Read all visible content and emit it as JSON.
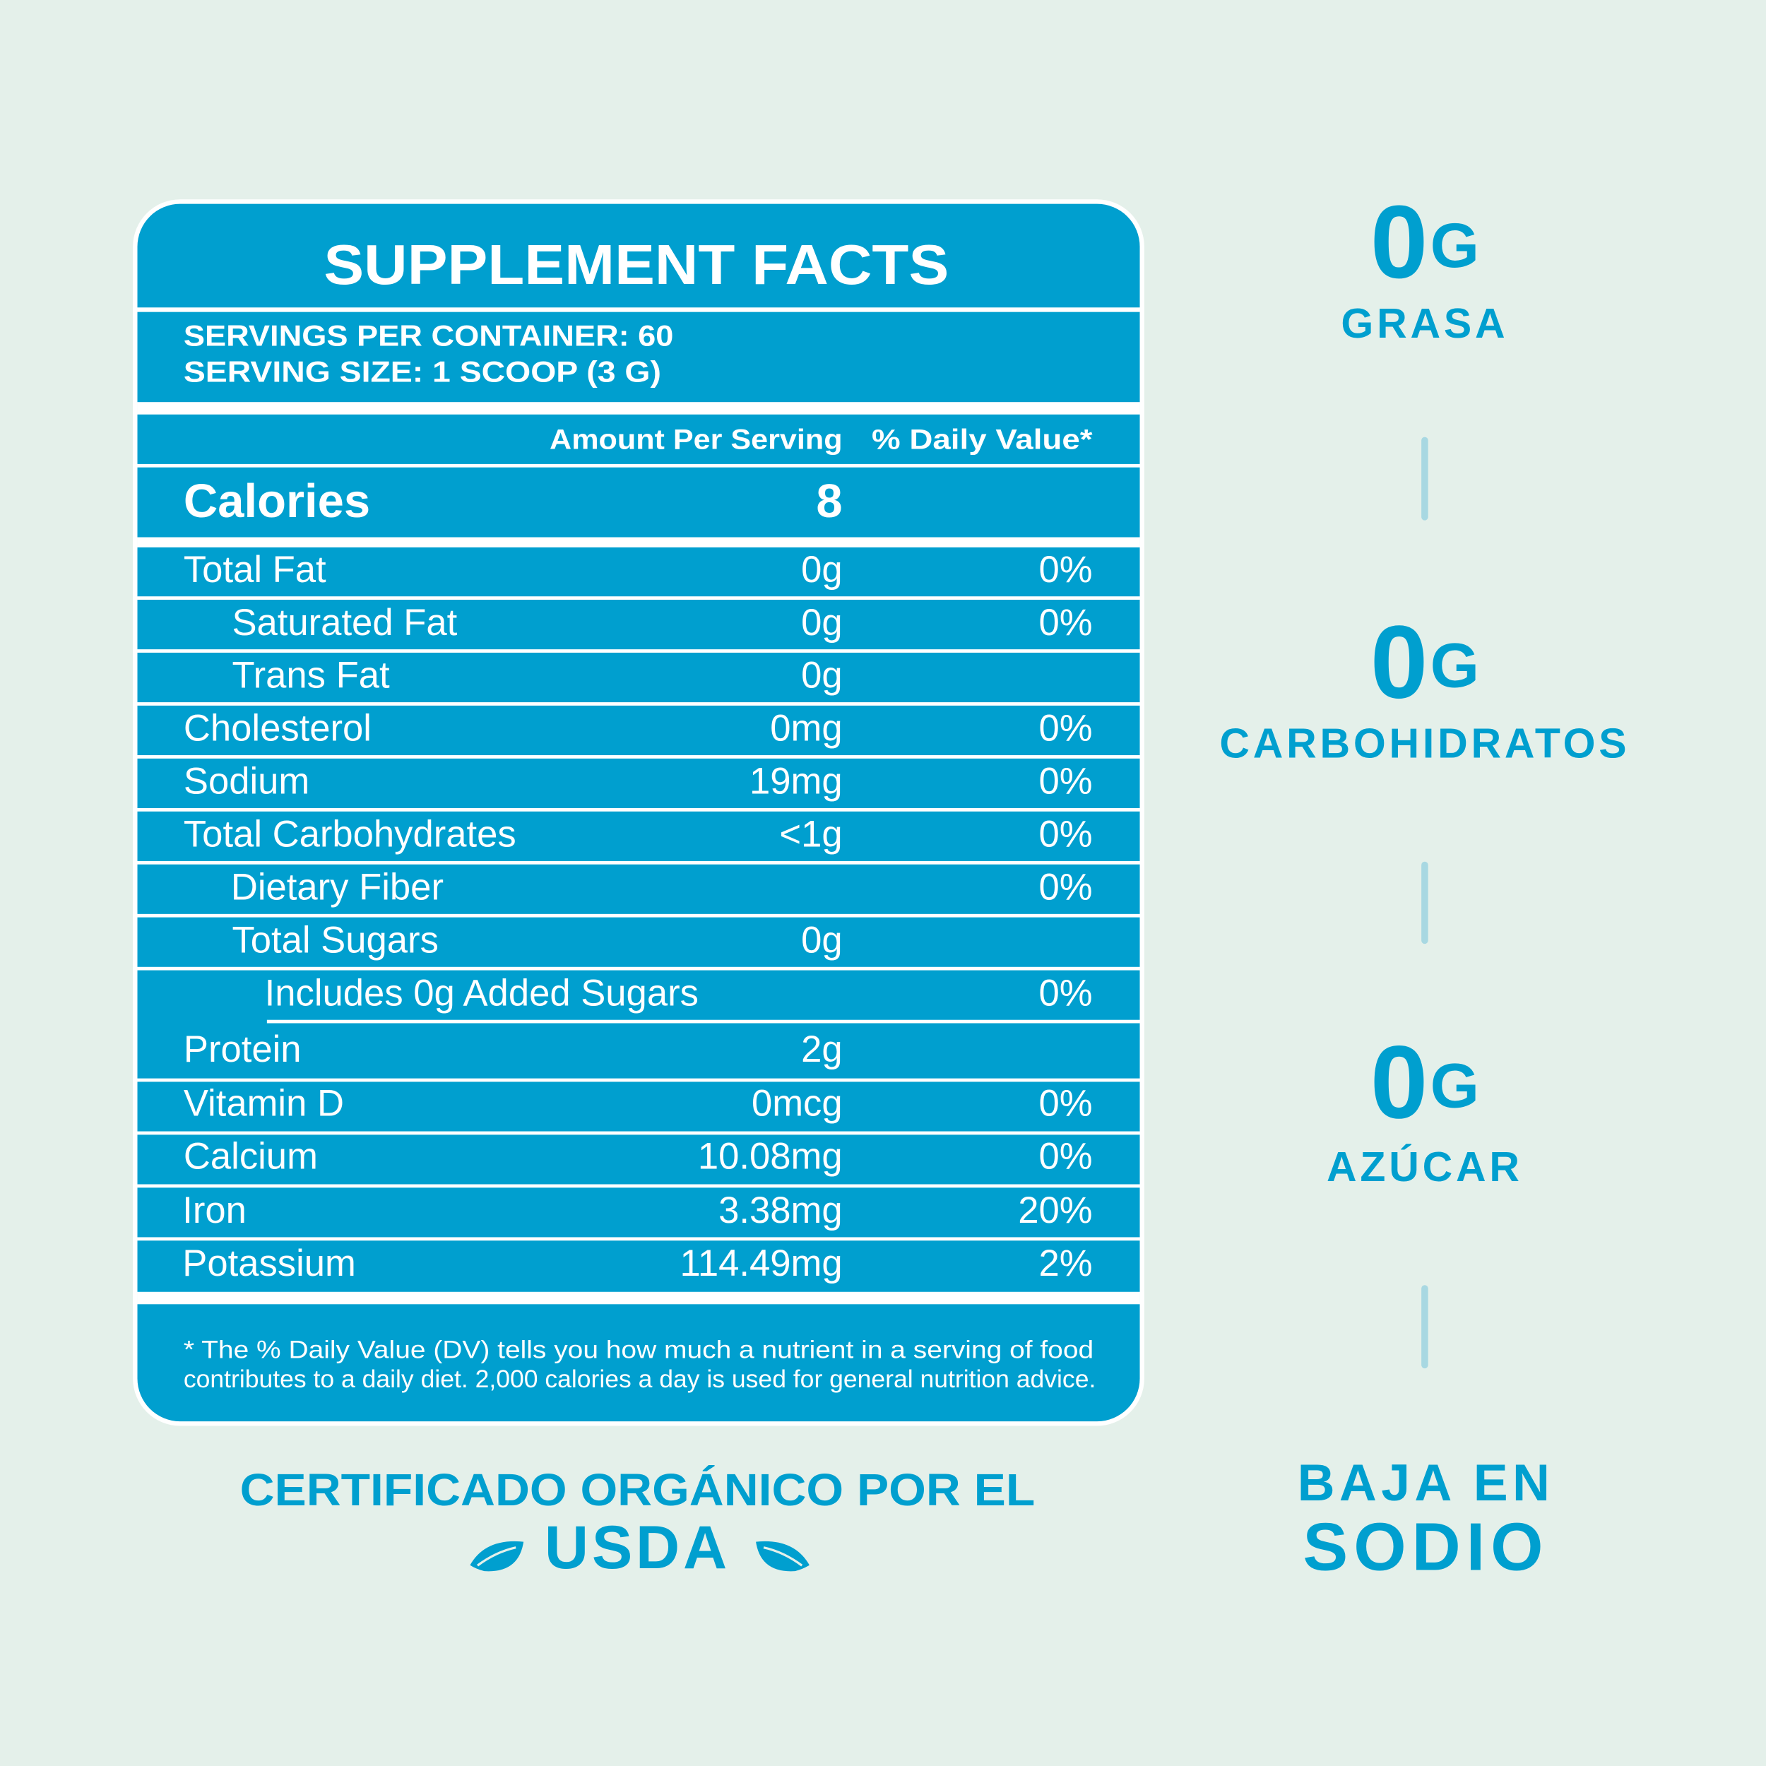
{
  "header": {
    "title": "SUPPLEMENT FACTS",
    "servings": [
      "SERVINGS PER CONTAINER: 60",
      "SERVING SIZE:  1 SCOOP (3 G)"
    ]
  },
  "table": {
    "columns": [
      "Amount Per Serving",
      "% Daily Value*"
    ],
    "calories": {
      "label": "Calories",
      "value": 8
    },
    "rows": [
      {
        "label": "Total Fat",
        "amount": "0g",
        "dv": "0%"
      },
      {
        "label": "Saturated Fat",
        "amount": "0g",
        "dv": "0%"
      },
      {
        "label": "Trans Fat",
        "amount": "0g"
      },
      {
        "label": "Cholesterol",
        "amount": "0mg",
        "dv": "0%"
      },
      {
        "label": "Sodium",
        "amount": "19mg",
        "dv": "0%"
      },
      {
        "label": "Total Carbohydrates",
        "amount": "<1g",
        "dv": "0%"
      },
      {
        "label": "Dietary Fiber",
        "dv": "0%"
      },
      {
        "label": "Total Sugars",
        "amount": "0g"
      },
      {
        "label": "Includes 0g Added Sugars",
        "dv": "0%"
      },
      {
        "label": "Protein",
        "amount": "2g"
      },
      {
        "label": "Vitamin D",
        "amount": "0mcg",
        "dv": "0%"
      },
      {
        "label": "Calcium",
        "amount": "10.08mg",
        "dv": "0%"
      },
      {
        "label": "Iron",
        "amount": "3.38mg",
        "dv": "20%"
      },
      {
        "label": "Potassium",
        "amount": "114.49mg",
        "dv": "2%"
      }
    ],
    "footnote": [
      "* The % Daily Value (DV) tells you how much a nutrient in a serving of food",
      "contributes to a daily diet. 2,000 calories a day is used for general nutrition advice."
    ]
  },
  "highlights": [
    {
      "value": 0,
      "unit": "G",
      "label": "GRASA"
    },
    {
      "value": 0,
      "unit": "G",
      "label": "CARBOHIDRATOS"
    },
    {
      "value": 0,
      "unit": "G",
      "label": "AZÚCAR"
    }
  ],
  "claim": [
    "BAJA EN",
    "SODIO"
  ],
  "certification": [
    "CERTIFICADO ORGÁNICO POR EL",
    "USDA"
  ]
}
